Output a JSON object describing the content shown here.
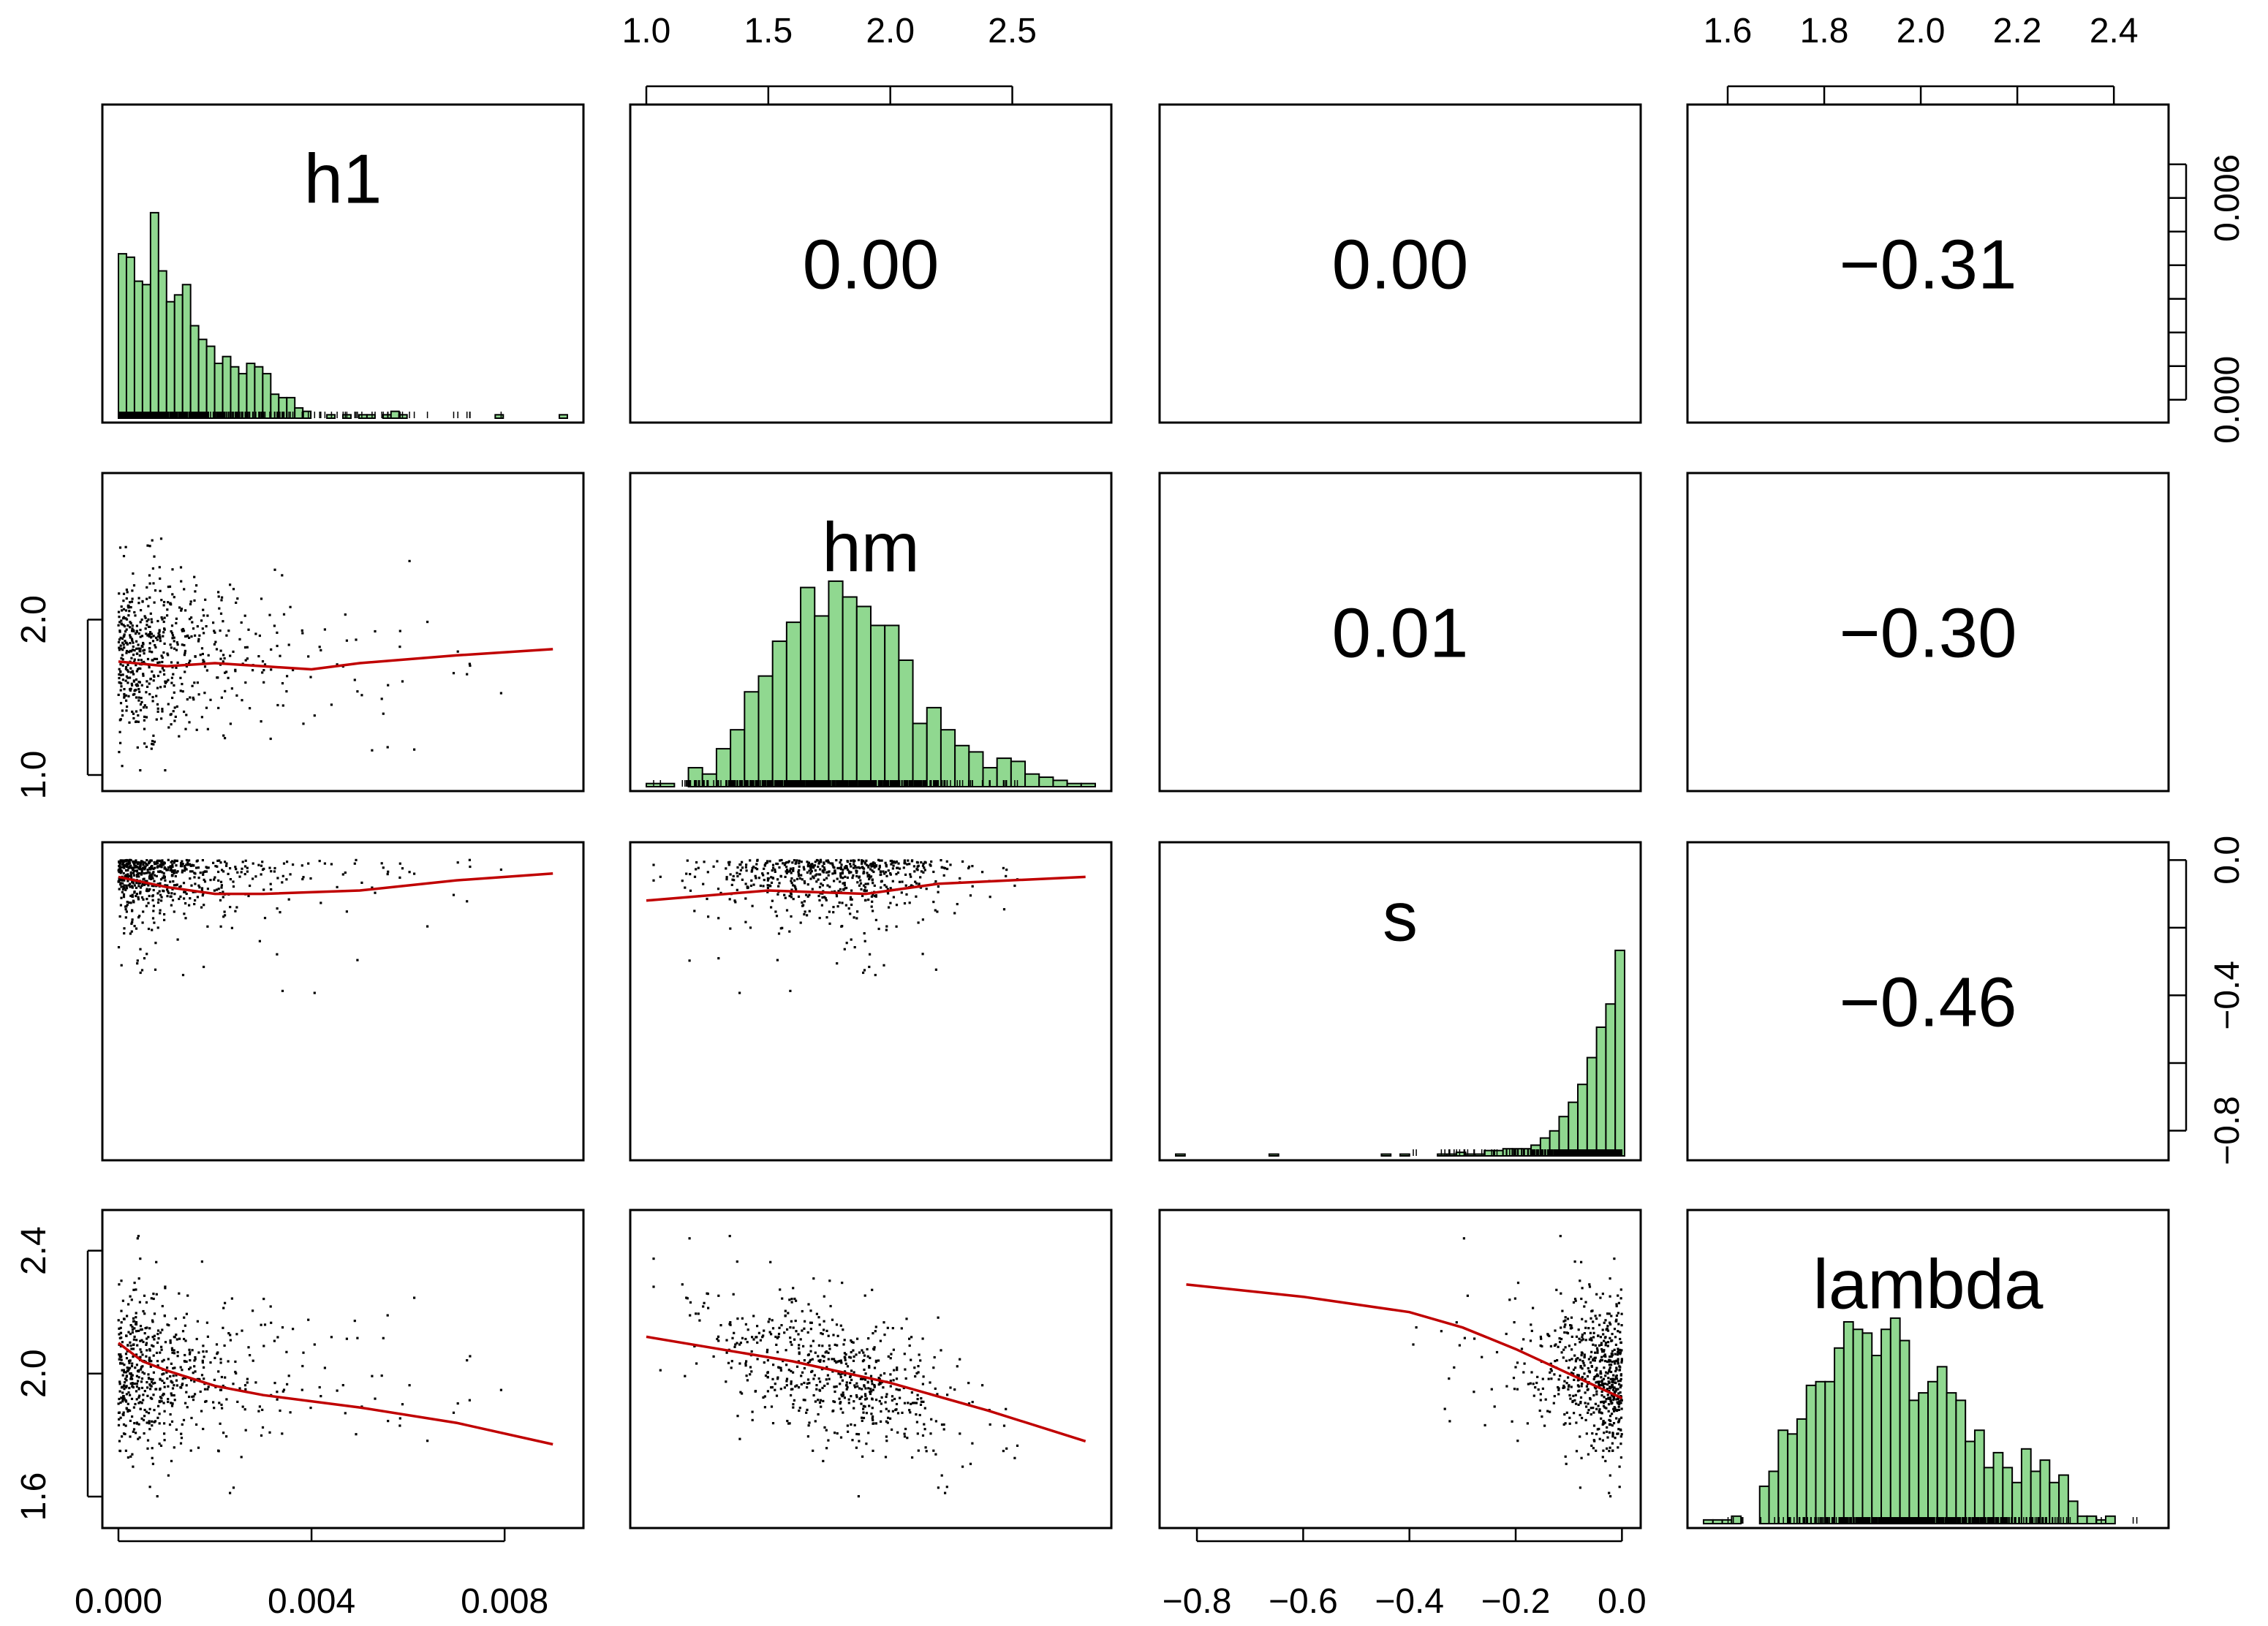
{
  "chart_data": {
    "type": "scatter_matrix",
    "variables": [
      "h1",
      "hm",
      "s",
      "lambda"
    ],
    "ranges": {
      "h1": [
        0.0,
        0.0093
      ],
      "hm": [
        1.0,
        2.84
      ],
      "s": [
        -0.84,
        0.005
      ],
      "lambda": [
        1.55,
        2.48
      ]
    },
    "axis_ticks": {
      "h1": [
        "0.000",
        "0.004",
        "0.008"
      ],
      "hm": [
        "1.0",
        "1.5",
        "2.0",
        "2.5"
      ],
      "hm_left": [
        "1.0",
        "2.0"
      ],
      "s": [
        "-0.8",
        "-0.6",
        "-0.4",
        "-0.2",
        "0.0"
      ],
      "s_right": [
        "-0.8",
        "-0.4",
        "0.0"
      ],
      "lambda": [
        "1.6",
        "1.8",
        "2.0",
        "2.2",
        "2.4"
      ],
      "lambda_left": [
        "1.6",
        "2.0",
        "2.4"
      ],
      "density_right": [
        "0.000",
        "0.006"
      ]
    },
    "tick_values": {
      "h1": [
        0.0,
        0.004,
        0.008
      ],
      "hm": [
        1.0,
        1.5,
        2.0,
        2.5
      ],
      "hm_left": [
        1.0,
        2.0
      ],
      "s": [
        -0.8,
        -0.6,
        -0.4,
        -0.2,
        0.0
      ],
      "s_right": [
        -0.8,
        -0.4,
        0.0
      ],
      "lambda": [
        1.6,
        1.8,
        2.0,
        2.2,
        2.4
      ],
      "lambda_left": [
        1.6,
        2.0,
        2.4
      ],
      "density_right": [
        0.0,
        0.006
      ],
      "density_range": [
        -0.0002,
        0.0083
      ]
    },
    "correlations": [
      {
        "row": 0,
        "col": 1,
        "pair": "h1-hm",
        "label": "0.00"
      },
      {
        "row": 0,
        "col": 2,
        "pair": "h1-s",
        "label": "0.00"
      },
      {
        "row": 0,
        "col": 3,
        "pair": "h1-lambda",
        "label": "−0.31"
      },
      {
        "row": 1,
        "col": 2,
        "pair": "hm-s",
        "label": "0.01"
      },
      {
        "row": 1,
        "col": 3,
        "pair": "hm-lambda",
        "label": "−0.30"
      },
      {
        "row": 2,
        "col": 3,
        "pair": "s-lambda",
        "label": "−0.46"
      }
    ],
    "histograms": {
      "h1": [
        48,
        47,
        40,
        39,
        60,
        43,
        34,
        36,
        39,
        27,
        23,
        21,
        16,
        18,
        15,
        13,
        16,
        15,
        13,
        7,
        6,
        6,
        3,
        2,
        0,
        0,
        1,
        0,
        1,
        0,
        1,
        1,
        0,
        1,
        2,
        1,
        0,
        0,
        0,
        0,
        0,
        0,
        0,
        0,
        0,
        0,
        0,
        1,
        0,
        0,
        0,
        0,
        0,
        0,
        0,
        1
      ],
      "hm": [
        1,
        1,
        0,
        6,
        4,
        12,
        18,
        30,
        35,
        46,
        52,
        63,
        54,
        65,
        60,
        57,
        51,
        51,
        40,
        20,
        25,
        18,
        13,
        11,
        6,
        9,
        8,
        4,
        3,
        2,
        1,
        1
      ],
      "s": [
        1,
        0,
        0,
        0,
        0,
        0,
        0,
        0,
        0,
        0,
        1,
        0,
        0,
        0,
        0,
        0,
        0,
        0,
        0,
        0,
        0,
        0,
        1,
        0,
        1,
        0,
        0,
        0,
        1,
        1,
        2,
        1,
        1,
        3,
        3,
        4,
        4,
        4,
        6,
        10,
        14,
        22,
        30,
        40,
        55,
        72,
        85,
        115
      ],
      "lambda": [
        1,
        1,
        1,
        2,
        0,
        0,
        10,
        14,
        25,
        24,
        28,
        37,
        38,
        38,
        47,
        54,
        52,
        51,
        45,
        52,
        55,
        49,
        33,
        35,
        38,
        42,
        35,
        33,
        22,
        25,
        15,
        19,
        15,
        11,
        20,
        14,
        17,
        11,
        13,
        6,
        2,
        2,
        1,
        2,
        0,
        0,
        0,
        0
      ]
    },
    "smooth_lines": {
      "hm~h1": [
        [
          0.0,
          1.73
        ],
        [
          0.001,
          1.7
        ],
        [
          0.002,
          1.72
        ],
        [
          0.003,
          1.7
        ],
        [
          0.004,
          1.68
        ],
        [
          0.005,
          1.72
        ],
        [
          0.007,
          1.77
        ],
        [
          0.009,
          1.81
        ]
      ],
      "s~h1": [
        [
          0.0,
          -0.05
        ],
        [
          0.001,
          -0.08
        ],
        [
          0.002,
          -0.1
        ],
        [
          0.003,
          -0.1
        ],
        [
          0.005,
          -0.09
        ],
        [
          0.007,
          -0.06
        ],
        [
          0.009,
          -0.04
        ]
      ],
      "lambda~h1": [
        [
          0.0,
          2.1
        ],
        [
          0.0005,
          2.04
        ],
        [
          0.001,
          2.01
        ],
        [
          0.002,
          1.96
        ],
        [
          0.003,
          1.93
        ],
        [
          0.005,
          1.89
        ],
        [
          0.007,
          1.84
        ],
        [
          0.009,
          1.77
        ]
      ],
      "s~hm": [
        [
          1.0,
          -0.12
        ],
        [
          1.5,
          -0.09
        ],
        [
          1.9,
          -0.1
        ],
        [
          2.2,
          -0.07
        ],
        [
          2.8,
          -0.05
        ]
      ],
      "lambda~hm": [
        [
          1.0,
          2.12
        ],
        [
          1.6,
          2.04
        ],
        [
          2.0,
          1.97
        ],
        [
          2.4,
          1.88
        ],
        [
          2.8,
          1.78
        ]
      ],
      "lambda~s": [
        [
          -0.82,
          2.29
        ],
        [
          -0.6,
          2.25
        ],
        [
          -0.4,
          2.2
        ],
        [
          -0.3,
          2.15
        ],
        [
          -0.2,
          2.08
        ],
        [
          -0.1,
          2.0
        ],
        [
          0.0,
          1.92
        ]
      ]
    }
  }
}
